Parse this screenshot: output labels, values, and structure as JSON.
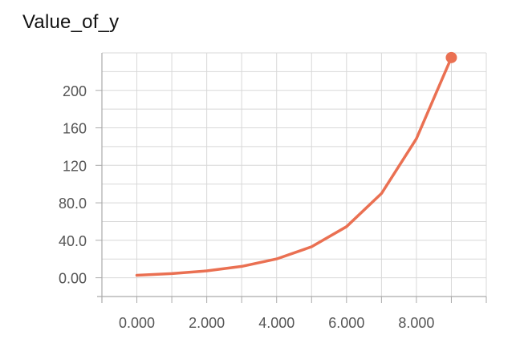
{
  "chart_data": {
    "type": "line",
    "title": "Value_of_y",
    "xlabel": "",
    "ylabel": "",
    "x": [
      0,
      1,
      2,
      3,
      4,
      5,
      6,
      7,
      8,
      9
    ],
    "series": [
      {
        "values": [
          2.7,
          4.5,
          7.4,
          12.2,
          20.1,
          33.1,
          54.6,
          90.0,
          148.4,
          235.0
        ]
      }
    ],
    "xlim": [
      -1,
      10
    ],
    "ylim": [
      -20,
      240
    ],
    "x_ticks": [
      0,
      2,
      4,
      6,
      8
    ],
    "x_tick_labels": [
      "0.000",
      "2.000",
      "4.000",
      "6.000",
      "8.000"
    ],
    "y_ticks": [
      0,
      40,
      80,
      120,
      160,
      200
    ],
    "y_tick_labels": [
      "0.00",
      "40.0",
      "80.0",
      "120",
      "160",
      "200"
    ],
    "grid": true,
    "line_color": "#ea7052",
    "marker_last_point": true
  }
}
